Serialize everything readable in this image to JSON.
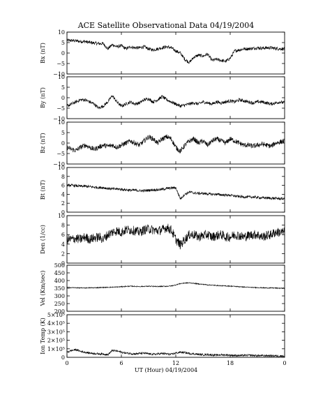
{
  "chart_data": {
    "type": "line",
    "title": "ACE Satellite Observational Data   04/19/2004",
    "xlabel": "UT (Hour)   04/19/2004",
    "x_ticks": [
      "0",
      "6",
      "12",
      "18",
      "0"
    ],
    "xlim": [
      0,
      24
    ],
    "grid": false,
    "panels": [
      {
        "ylabel": "Bx (nT)",
        "ylim": [
          -10,
          10
        ],
        "y_ticks": [
          "10",
          "5",
          "0",
          "−5",
          "−10"
        ],
        "y_tick_values": [
          10,
          5,
          0,
          -5,
          -10
        ],
        "amp": 0.8,
        "series": [
          {
            "x": [
              0,
              0.5,
              1,
              1.5,
              2,
              2.5,
              3,
              3.5,
              4,
              4.5,
              5,
              5.5,
              6,
              6.5,
              7,
              7.5,
              8,
              8.5,
              9,
              9.5,
              10,
              10.5,
              11,
              11.5,
              12,
              12.5,
              13,
              13.5,
              14,
              14.5,
              15,
              15.5,
              16,
              16.5,
              17,
              17.5,
              18,
              18.5,
              19,
              19.5,
              20,
              20.5,
              21,
              21.5,
              22,
              22.5,
              23,
              23.5,
              24
            ],
            "y": [
              6,
              6,
              5.8,
              5.5,
              5.5,
              5,
              4.8,
              4.5,
              4.5,
              2,
              4,
              3,
              3.5,
              2,
              3,
              2.5,
              2.5,
              3,
              2,
              1.5,
              2,
              2.5,
              3,
              2.5,
              1,
              0,
              -3,
              -4.5,
              -2,
              -1,
              -1.5,
              -0.5,
              -3.5,
              -3,
              -3.5,
              -4,
              -2.5,
              1,
              1.5,
              2,
              2,
              2.2,
              2.5,
              2.3,
              2.5,
              2.5,
              2.2,
              2,
              2
            ]
          }
        ]
      },
      {
        "ylabel": "By (nT)",
        "ylim": [
          -10,
          10
        ],
        "y_ticks": [
          "10",
          "5",
          "0",
          "−5",
          "−10"
        ],
        "y_tick_values": [
          10,
          5,
          0,
          -5,
          -10
        ],
        "amp": 0.8,
        "series": [
          {
            "x": [
              0,
              0.5,
              1,
              1.5,
              2,
              2.5,
              3,
              3.5,
              4,
              4.5,
              5,
              5.5,
              6,
              6.5,
              7,
              7.5,
              8,
              8.5,
              9,
              9.5,
              10,
              10.5,
              11,
              11.5,
              12,
              12.5,
              13,
              13.5,
              14,
              14.5,
              15,
              15.5,
              16,
              16.5,
              17,
              17.5,
              18,
              18.5,
              19,
              19.5,
              20,
              20.5,
              21,
              21.5,
              22,
              22.5,
              23,
              23.5,
              24
            ],
            "y": [
              -4,
              -3,
              -2,
              -1,
              -1,
              -2,
              -3,
              -5,
              -4,
              -2,
              1,
              -2,
              -4,
              -3,
              -2,
              -3,
              -2.5,
              -1,
              -0.5,
              -2,
              -1,
              0.5,
              -1,
              -2,
              -3,
              -4,
              -3.5,
              -3,
              -2.5,
              -3,
              -2,
              -2.5,
              -3,
              -2,
              -2.5,
              -2,
              -1.5,
              -2,
              -1,
              -1.5,
              -2,
              -2.5,
              -2,
              -2,
              -2.5,
              -3,
              -2.5,
              -2,
              -2.5
            ]
          }
        ]
      },
      {
        "ylabel": "Bz (nT)",
        "ylim": [
          -10,
          10
        ],
        "y_ticks": [
          "10",
          "5",
          "0",
          "−5",
          "−10"
        ],
        "y_tick_values": [
          10,
          5,
          0,
          -5,
          -10
        ],
        "amp": 1.2,
        "series": [
          {
            "x": [
              0,
              0.5,
              1,
              1.5,
              2,
              2.5,
              3,
              3.5,
              4,
              4.5,
              5,
              5.5,
              6,
              6.5,
              7,
              7.5,
              8,
              8.5,
              9,
              9.5,
              10,
              10.5,
              11,
              11.5,
              12,
              12.5,
              13,
              13.5,
              14,
              14.5,
              15,
              15.5,
              16,
              16.5,
              17,
              17.5,
              18,
              18.5,
              19,
              19.5,
              20,
              20.5,
              21,
              21.5,
              22,
              22.5,
              23,
              23.5,
              24
            ],
            "y": [
              -2,
              -3,
              -3.5,
              -2,
              -1,
              -2,
              -3,
              -2,
              -1,
              -1.5,
              -1,
              -2,
              -1,
              0,
              1,
              0,
              -1,
              1,
              3,
              2,
              0,
              2,
              3,
              2,
              -2,
              -4,
              -1,
              1,
              2,
              0,
              1,
              -1,
              1,
              2,
              1,
              0,
              2,
              1,
              0,
              -1,
              -1,
              -1.5,
              -1,
              -0.5,
              -1,
              -1.5,
              0,
              0.5,
              1
            ]
          }
        ]
      },
      {
        "ylabel": "Bt (nT)",
        "ylim": [
          0,
          10
        ],
        "y_ticks": [
          "10",
          "8",
          "6",
          "4",
          "2",
          "0"
        ],
        "y_tick_values": [
          10,
          8,
          6,
          4,
          2,
          0
        ],
        "amp": 0.3,
        "series": [
          {
            "x": [
              0,
              0.5,
              1,
              1.5,
              2,
              2.5,
              3,
              3.5,
              4,
              4.5,
              5,
              5.5,
              6,
              6.5,
              7,
              7.5,
              8,
              8.5,
              9,
              9.5,
              10,
              10.5,
              11,
              11.5,
              12,
              12.5,
              13,
              13.5,
              14,
              14.5,
              15,
              15.5,
              16,
              16.5,
              17,
              17.5,
              18,
              18.5,
              19,
              19.5,
              20,
              20.5,
              21,
              21.5,
              22,
              22.5,
              23,
              23.5,
              24
            ],
            "y": [
              6,
              6,
              5.9,
              5.8,
              5.8,
              5.7,
              5.6,
              5.5,
              5.5,
              5.3,
              5.2,
              5.2,
              5.1,
              5,
              4.9,
              4.9,
              4.8,
              4.8,
              4.9,
              5,
              5,
              5.1,
              5.3,
              5.4,
              5.5,
              3,
              4,
              4.5,
              4.3,
              4.2,
              4.2,
              4.1,
              4,
              4,
              3.9,
              3.8,
              3.8,
              3.6,
              3.5,
              3.4,
              3.4,
              3.4,
              3.3,
              3.2,
              3.2,
              3.1,
              3.1,
              3,
              3
            ]
          }
        ]
      },
      {
        "ylabel": "Den (1/cc)",
        "ylim": [
          0,
          10
        ],
        "y_ticks": [
          "10",
          "8",
          "6",
          "4",
          "2",
          "0"
        ],
        "y_tick_values": [
          10,
          8,
          6,
          4,
          2,
          0
        ],
        "amp": 1.0,
        "series": [
          {
            "x": [
              0,
              0.5,
              1,
              1.5,
              2,
              2.5,
              3,
              3.5,
              4,
              4.5,
              5,
              5.5,
              6,
              6.5,
              7,
              7.5,
              8,
              8.5,
              9,
              9.5,
              10,
              10.5,
              11,
              11.5,
              12,
              12.5,
              13,
              13.5,
              14,
              14.5,
              15,
              15.5,
              16,
              16.5,
              17,
              17.5,
              18,
              18.5,
              19,
              19.5,
              20,
              20.5,
              21,
              21.5,
              22,
              22.5,
              23,
              23.5,
              24
            ],
            "y": [
              5,
              5,
              5.2,
              5,
              5.5,
              5,
              5.3,
              5.5,
              5,
              6,
              6.5,
              6.8,
              6.5,
              7,
              7,
              6.8,
              6.5,
              7,
              7.2,
              7,
              6.8,
              7,
              7.5,
              7,
              5,
              3.8,
              5,
              6,
              6,
              5.5,
              5.8,
              6,
              5.5,
              5.8,
              6,
              5.5,
              5.5,
              6,
              5.8,
              5.5,
              5.8,
              6,
              6,
              5.5,
              5.8,
              6,
              6.5,
              6.5,
              6.5
            ]
          }
        ]
      },
      {
        "ylabel": "Vel (Km/sec)",
        "ylim": [
          200,
          500
        ],
        "y_ticks": [
          "500",
          "450",
          "400",
          "350",
          "300",
          "250",
          "200"
        ],
        "y_tick_values": [
          500,
          450,
          400,
          350,
          300,
          250,
          200
        ],
        "amp": 3,
        "series": [
          {
            "x": [
              0,
              0.5,
              1,
              1.5,
              2,
              2.5,
              3,
              3.5,
              4,
              4.5,
              5,
              5.5,
              6,
              6.5,
              7,
              7.5,
              8,
              8.5,
              9,
              9.5,
              10,
              10.5,
              11,
              11.5,
              12,
              12.5,
              13,
              13.5,
              14,
              14.5,
              15,
              15.5,
              16,
              16.5,
              17,
              17.5,
              18,
              18.5,
              19,
              19.5,
              20,
              20.5,
              21,
              21.5,
              22,
              22.5,
              23,
              23.5,
              24
            ],
            "y": [
              355,
              354,
              353,
              352,
              352,
              353,
              353,
              354,
              355,
              356,
              357,
              358,
              360,
              362,
              363,
              362,
              361,
              362,
              363,
              362,
              361,
              362,
              363,
              365,
              372,
              380,
              384,
              385,
              382,
              378,
              375,
              372,
              370,
              368,
              366,
              365,
              364,
              362,
              360,
              358,
              356,
              355,
              354,
              353,
              352,
              352,
              351,
              350,
              350
            ]
          }
        ]
      },
      {
        "ylabel": "Ion Temp (K)",
        "ylim": [
          0,
          500000
        ],
        "y_ticks": [
          "5×10⁵",
          "4×10⁵",
          "3×10⁵",
          "2×10⁵",
          "1×10⁵",
          "0"
        ],
        "y_tick_values": [
          500000,
          400000,
          300000,
          200000,
          100000,
          0
        ],
        "amp": 12000,
        "series": [
          {
            "x": [
              0,
              0.5,
              1,
              1.5,
              2,
              2.5,
              3,
              3.5,
              4,
              4.5,
              5,
              5.5,
              6,
              6.5,
              7,
              7.5,
              8,
              8.5,
              9,
              9.5,
              10,
              10.5,
              11,
              11.5,
              12,
              12.5,
              13,
              13.5,
              14,
              14.5,
              15,
              15.5,
              16,
              16.5,
              17,
              17.5,
              18,
              18.5,
              19,
              19.5,
              20,
              20.5,
              21,
              21.5,
              22,
              22.5,
              23,
              23.5,
              24
            ],
            "y": [
              60000,
              80000,
              90000,
              70000,
              60000,
              50000,
              45000,
              40000,
              40000,
              30000,
              80000,
              75000,
              60000,
              50000,
              45000,
              40000,
              45000,
              50000,
              40000,
              35000,
              40000,
              45000,
              40000,
              35000,
              50000,
              60000,
              55000,
              45000,
              40000,
              35000,
              30000,
              32000,
              28000,
              25000,
              30000,
              28000,
              25000,
              22000,
              20000,
              22000,
              24000,
              22000,
              20000,
              18000,
              20000,
              18000,
              17000,
              16000,
              15000
            ]
          }
        ]
      }
    ]
  }
}
